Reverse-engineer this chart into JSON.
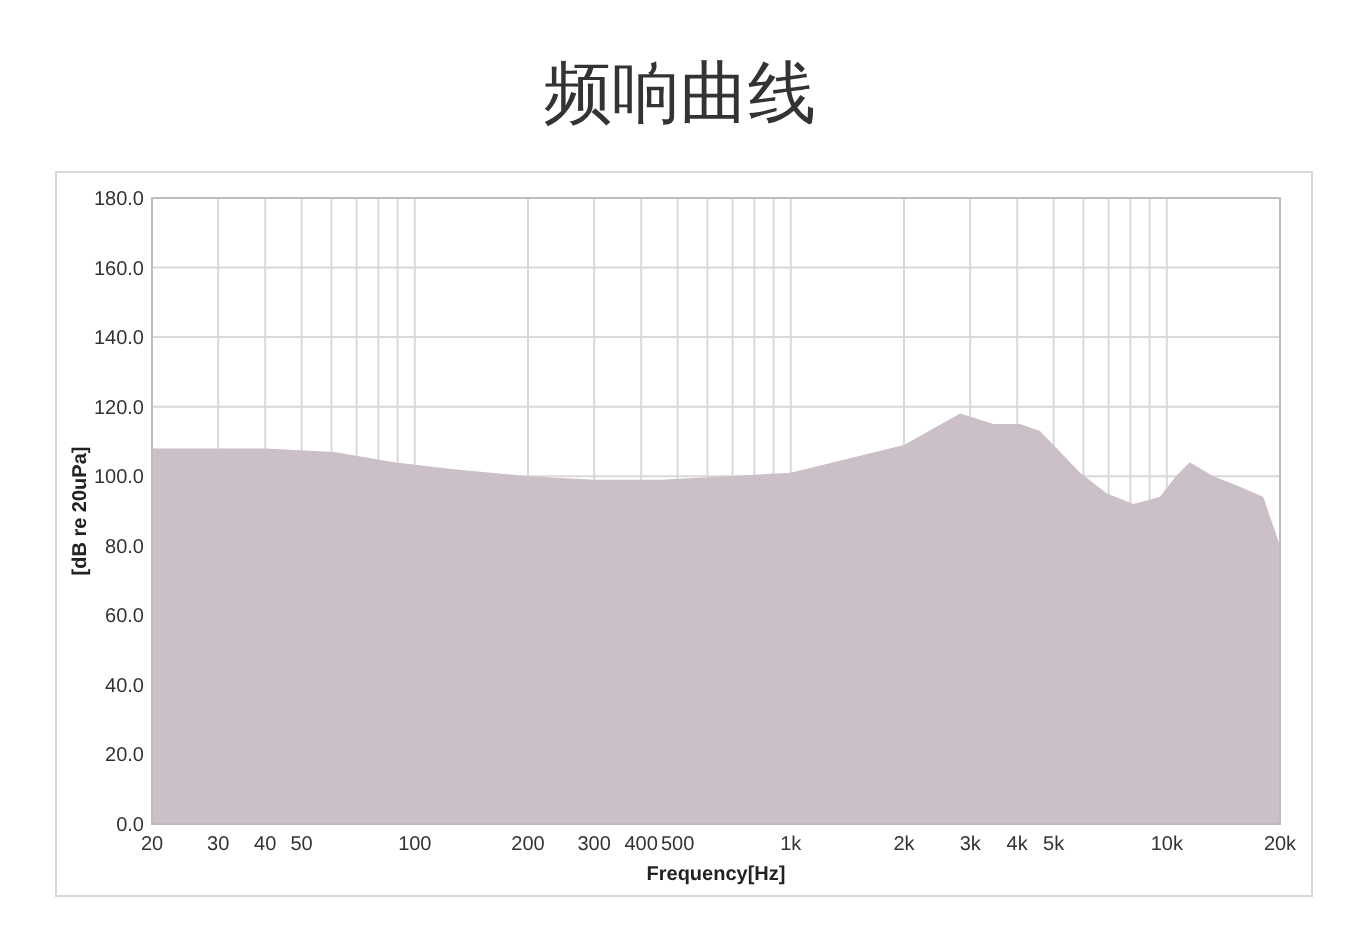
{
  "chart_data": {
    "type": "area",
    "title": "频响曲线",
    "xlabel": "Frequency[Hz]",
    "ylabel": "[dB re 20uPa]",
    "log": "x",
    "xlim": [
      20,
      20000
    ],
    "ylim": [
      0,
      180
    ],
    "xticks": [
      20,
      30,
      40,
      50,
      {
        "value": 60,
        "label": null
      },
      {
        "value": 70,
        "label": null
      },
      {
        "value": 80,
        "label": null
      },
      {
        "value": 90,
        "label": null
      },
      100,
      200,
      300,
      400,
      500,
      {
        "value": 600,
        "label": null
      },
      {
        "value": 700,
        "label": null
      },
      {
        "value": 800,
        "label": null
      },
      {
        "value": 900,
        "label": null
      },
      {
        "value": 1000,
        "label": "1k"
      },
      {
        "value": 2000,
        "label": "2k"
      },
      {
        "value": 3000,
        "label": "3k"
      },
      {
        "value": 4000,
        "label": "4k"
      },
      {
        "value": 5000,
        "label": "5k"
      },
      {
        "value": 6000,
        "label": null
      },
      {
        "value": 7000,
        "label": null
      },
      {
        "value": 8000,
        "label": null
      },
      {
        "value": 9000,
        "label": null
      },
      {
        "value": 10000,
        "label": "10k"
      },
      {
        "value": 20000,
        "label": "20k"
      }
    ],
    "yticks": [
      {
        "value": 0,
        "label": "0.0"
      },
      {
        "value": 20,
        "label": "20.0"
      },
      {
        "value": 40,
        "label": "40.0"
      },
      {
        "value": 60,
        "label": "60.0"
      },
      {
        "value": 80,
        "label": "80.0"
      },
      {
        "value": 100,
        "label": "100.0"
      },
      {
        "value": 120,
        "label": "120.0"
      },
      {
        "value": 140,
        "label": "140.0"
      },
      {
        "value": 160,
        "label": "160.0"
      },
      {
        "value": 180,
        "label": "180.0"
      }
    ],
    "grid": true,
    "series": [
      {
        "color": "#cbbfc8",
        "x": [
          20,
          30,
          40,
          61,
          88,
          127,
          200,
          300,
          450,
          1000,
          2000,
          2820,
          3460,
          4070,
          4600,
          5880,
          6930,
          8150,
          9580,
          10570,
          11500,
          13300,
          15650,
          18060,
          20000
        ],
        "values": [
          108,
          108,
          108,
          107,
          104,
          102,
          100,
          99,
          99,
          101,
          109,
          118,
          115,
          115,
          113,
          101,
          95,
          92,
          94,
          100,
          104,
          100,
          97,
          94,
          80
        ]
      }
    ]
  }
}
